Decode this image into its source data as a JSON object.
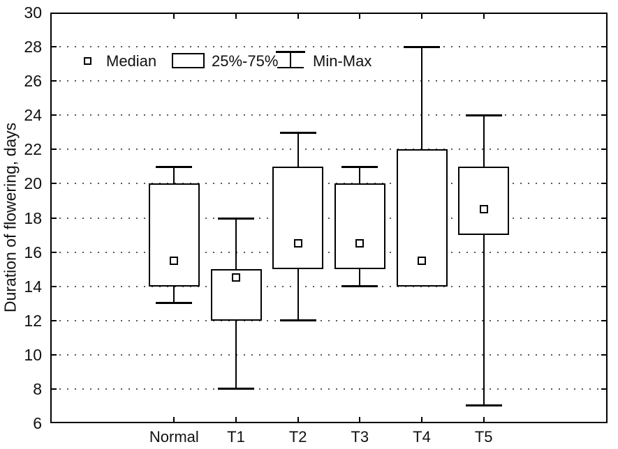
{
  "page": {
    "background": "#ffffff"
  },
  "chart_data": {
    "type": "box",
    "title": "",
    "xlabel": "",
    "ylabel": "Duration of flowering, days",
    "ylim": [
      6,
      30
    ],
    "yticks": [
      6,
      8,
      10,
      12,
      14,
      16,
      18,
      20,
      22,
      24,
      26,
      28,
      30
    ],
    "grid": "horizontal-dotted",
    "legend": {
      "position": "top-left-inside",
      "median_label": "Median",
      "box_label": "25%-75%",
      "whisker_label": "Min-Max"
    },
    "categories": [
      "Normal",
      "T1",
      "T2",
      "T3",
      "T4",
      "T5"
    ],
    "series": [
      {
        "category": "Normal",
        "min": 13,
        "q1": 14,
        "median": 15.5,
        "q3": 20,
        "max": 21
      },
      {
        "category": "T1",
        "min": 8,
        "q1": 12,
        "median": 14.5,
        "q3": 15,
        "max": 18
      },
      {
        "category": "T2",
        "min": 12,
        "q1": 15,
        "median": 16.5,
        "q3": 21,
        "max": 23
      },
      {
        "category": "T3",
        "min": 14,
        "q1": 15,
        "median": 16.5,
        "q3": 20,
        "max": 21
      },
      {
        "category": "T4",
        "min": 14,
        "q1": 14,
        "median": 15.5,
        "q3": 22,
        "max": 28
      },
      {
        "category": "T5",
        "min": 7,
        "q1": 17,
        "median": 18.5,
        "q3": 21,
        "max": 24
      }
    ],
    "colors": {
      "line": "#000000",
      "fill": "#ffffff"
    }
  }
}
